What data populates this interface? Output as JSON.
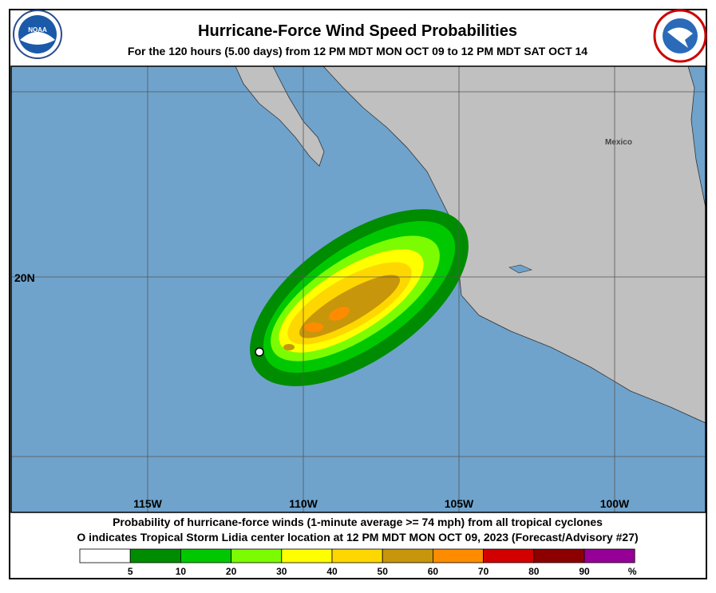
{
  "header": {
    "title": "Hurricane-Force Wind Speed Probabilities",
    "subtitle": "For the 120 hours (5.00 days) from 12 PM MDT MON OCT 09 to 12 PM MDT SAT OCT 14"
  },
  "map": {
    "longitude_labels": [
      "115W",
      "110W",
      "105W",
      "100W"
    ],
    "latitude_labels": [
      "20N"
    ],
    "place_labels": [
      "Mexico"
    ]
  },
  "caption": {
    "line1": "Probability of hurricane-force winds (1-minute average >= 74 mph) from all tropical cyclones",
    "line2": "O indicates Tropical Storm Lidia center location at 12 PM MDT MON OCT 09, 2023 (Forecast/Advisory #27)"
  },
  "legend": {
    "labels": [
      "5",
      "10",
      "20",
      "30",
      "40",
      "50",
      "60",
      "70",
      "80",
      "90"
    ],
    "unit": "%",
    "colors": [
      "#ffffff",
      "#008c00",
      "#00c800",
      "#7cfc00",
      "#ffff00",
      "#ffd700",
      "#c8960a",
      "#ff8c00",
      "#d20000",
      "#8c0000",
      "#960096"
    ]
  }
}
